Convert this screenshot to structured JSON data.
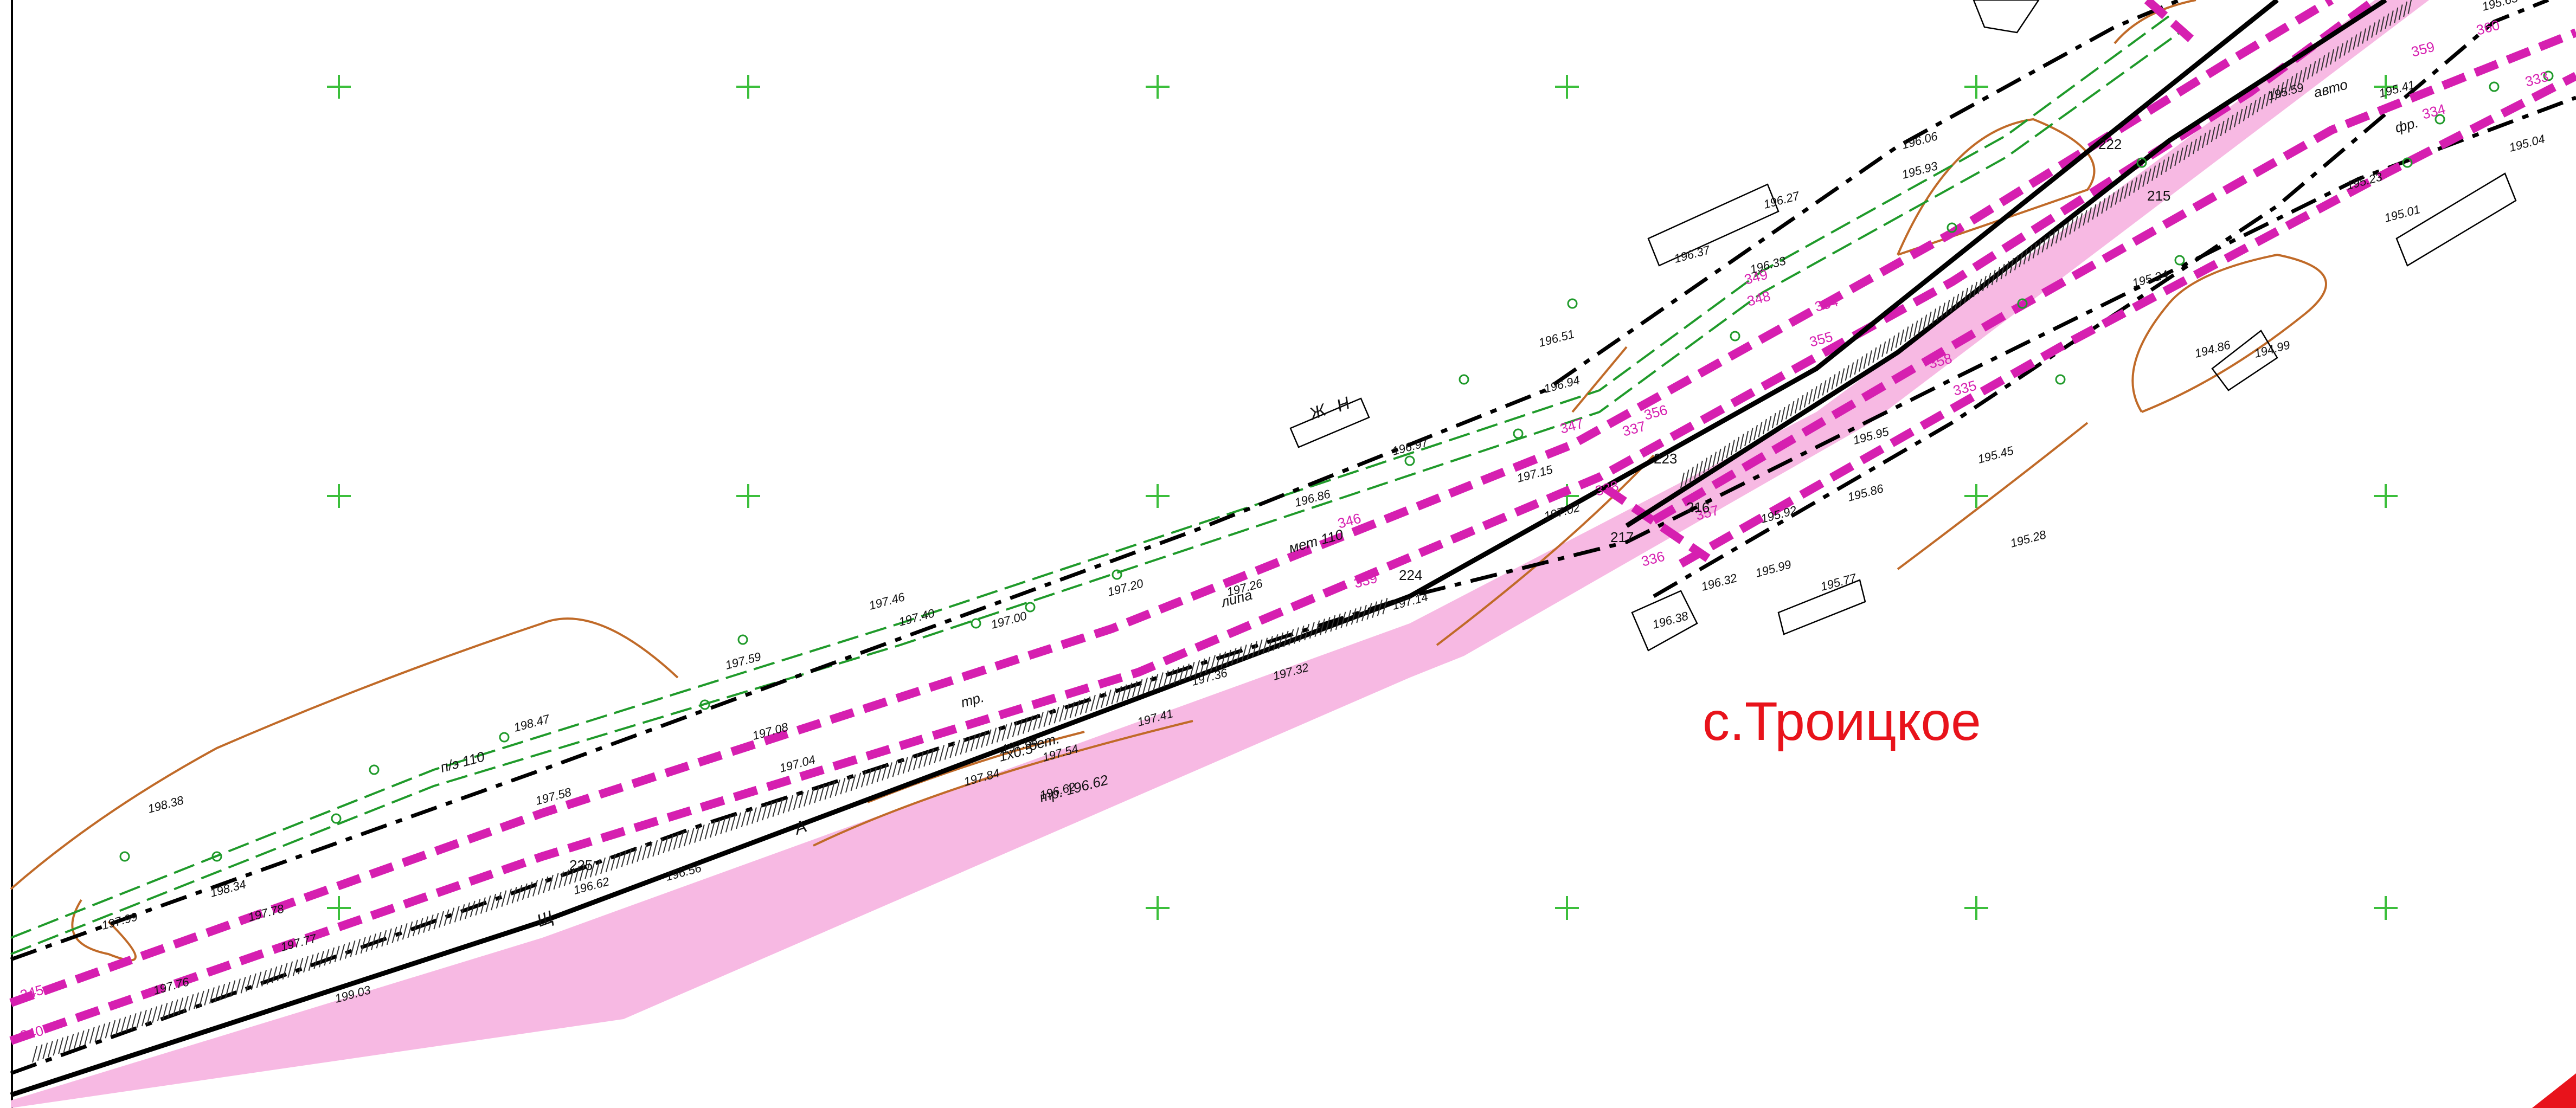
{
  "map": {
    "place_name": "с.Троицкое",
    "colors": {
      "background": "#ffffff",
      "road_fill": "#f7b9e3",
      "magenta_line": "#d61fb0",
      "black_line": "#000000",
      "green_line": "#1f9a2a",
      "contour": "#c06a28",
      "grid_cross": "#3cbf3c",
      "place_name": "#e8131b"
    },
    "picket_numbers": [
      "345",
      "340",
      "339",
      "338",
      "346",
      "347",
      "337",
      "336",
      "356",
      "357",
      "355",
      "358",
      "354",
      "335",
      "348",
      "349",
      "359",
      "360",
      "334",
      "333"
    ],
    "point_ids": [
      "225",
      "224",
      "223",
      "217",
      "216",
      "215",
      "222"
    ],
    "elevations": [
      "198.38",
      "198.47",
      "197.99",
      "198.34",
      "197.78",
      "197.77",
      "197.76",
      "199.03",
      "197.58",
      "197.59",
      "197.46",
      "197.40",
      "197.08",
      "197.04",
      "196.62",
      "196.56",
      "197.00",
      "197.20",
      "197.26",
      "197.14",
      "197.32",
      "197.36",
      "197.41",
      "197.54",
      "197.68",
      "197.84",
      "196.62",
      "196.97",
      "196.94",
      "196.86",
      "196.51",
      "196.37",
      "196.33",
      "196.27",
      "196.06",
      "195.93",
      "195.95",
      "195.92",
      "195.99",
      "195.86",
      "195.77",
      "196.32",
      "196.38",
      "195.45",
      "195.24",
      "195.28",
      "195.23",
      "195.01",
      "195.04",
      "195.41",
      "195.59",
      "195.63",
      "194.86",
      "194.99",
      "197.02",
      "197.15"
    ],
    "text_labels": [
      "п/э 110",
      "мет 110",
      "липа",
      "авто",
      "фр.",
      "тр.",
      "тр. 196.62",
      "1х0.5",
      "бет.",
      "Ж",
      "Н",
      "А",
      "Щ",
      "бет."
    ]
  }
}
